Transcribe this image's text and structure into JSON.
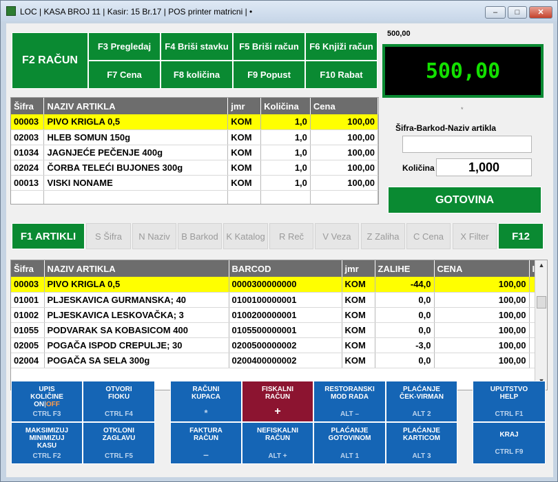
{
  "window": {
    "title": "LOC | KASA BROJ 11 | Kasir: 15 Br.17 | POS printer matricni |  •",
    "min_label": "–",
    "max_label": "□",
    "close_label": "✕"
  },
  "top_buttons": {
    "racun": "F2  RAČUN",
    "pregledaj": "F3  Pregledaj",
    "brisi_stavku": "F4  Briši stavku",
    "brisi_racun": "F5  Briši račun",
    "knjizi_racun": "F6  Knjiži račun",
    "cena": "F7   Cena",
    "kolicina": "F8   količina",
    "popust": "F9   Popust",
    "rabat": "F10   Rabat"
  },
  "total": {
    "small": "500,00",
    "display": "500,00",
    "dot": "*"
  },
  "search": {
    "label": "Šifra-Barkod-Naziv artikla",
    "value": "",
    "qty_label": "Količina",
    "qty_value": "1,000",
    "gotovina": "GOTOVINA"
  },
  "receipt": {
    "headers": [
      "Šifra",
      "NAZIV ARTIKLA",
      "jmr",
      "Količina",
      "Cena"
    ],
    "rows": [
      [
        "00003",
        "PIVO KRIGLA 0,5",
        "KOM",
        "1,0",
        "100,00"
      ],
      [
        "02003",
        "HLEB SOMUN 150g",
        "KOM",
        "1,0",
        "100,00"
      ],
      [
        "01034",
        "JAGNJEĆE PEČENJE 400g",
        "KOM",
        "1,0",
        "100,00"
      ],
      [
        "02024",
        "ČORBA TELEĆI BUJONES 300g",
        "KOM",
        "1,0",
        "100,00"
      ],
      [
        "00013",
        "VISKI NONAME",
        "KOM",
        "1,0",
        "100,00"
      ]
    ]
  },
  "tabs": {
    "artikli": "F1  ARTIKLI",
    "sifra": "S  Šifra",
    "naziv": "N  Naziv",
    "barkod": "B  Barkod",
    "katalog": "K  Katalog",
    "rec": "R  Reč",
    "veza": "V  Veza",
    "zaliha": "Z  Zaliha",
    "cena": "C  Cena",
    "filter": "X  Filter",
    "f12": "F12"
  },
  "articles": {
    "headers": [
      "Šifra",
      "NAZIV ARTIKLA",
      "BARCOD",
      "jmr",
      "ZALIHE",
      "CENA",
      "I"
    ],
    "rows": [
      [
        "00003",
        "PIVO KRIGLA 0,5",
        "0000300000000",
        "KOM",
        "-44,0",
        "100,00"
      ],
      [
        "01001",
        "PLJESKAVICA GURMANSKA; 40",
        "0100100000001",
        "KOM",
        "0,0",
        "100,00"
      ],
      [
        "01002",
        "PLJESKAVICA LESKOVAČKA; 3",
        "0100200000001",
        "KOM",
        "0,0",
        "100,00"
      ],
      [
        "01055",
        "PODVARAK SA KOBASICOM 400",
        "0105500000001",
        "KOM",
        "0,0",
        "100,00"
      ],
      [
        "02005",
        "POGAČA ISPOD CREPULJE; 30",
        "0200500000002",
        "KOM",
        "-3,0",
        "100,00"
      ],
      [
        "02004",
        "POGAČA SA SELA 300g",
        "0200400000002",
        "KOM",
        "0,0",
        "100,00"
      ]
    ]
  },
  "bottom": {
    "upis_1": "UPIS",
    "upis_2": "KOLIČINE",
    "upis_on": "ON",
    "upis_sep": "|",
    "upis_off": "OFF",
    "upis_sc": "CTRL  F3",
    "otvori": "OTVORI\nFIOKU",
    "otvori_sc": "CTRL   F4",
    "racuni": "RAČUNI\nKUPACA",
    "racuni_sc": "*",
    "fiskalni": "FISKALNI\nRAČUN",
    "fiskalni_sc": "+",
    "restoranski": "RESTORANSKI\nMOD RADA",
    "restoranski_sc": "ALT  –",
    "cek": "PLAĆANJE\nČEK-VIRMAN",
    "cek_sc": "ALT   2",
    "uputstvo": "UPUTSTVO\nHELP",
    "uputstvo_sc": "CTRL  F1",
    "maksimizuj": "MAKSIMIZUJ\nMINIMIZUJ\nKASU",
    "maksimizuj_sc": "CTRL  F2",
    "otkloni": "OTKLONI\nZAGLAVU",
    "otkloni_sc": "CTRL   F5",
    "faktura": "FAKTURA\nRAČUN",
    "faktura_sc": "–",
    "nefiskalni": "NEFISKALNI\nRAČUN",
    "nefiskalni_sc": "ALT  +",
    "gotovinom": "PLAĆANJE\nGOTOVINOM",
    "gotovinom_sc": "ALT   1",
    "karticom": "PLAĆANJE\nKARTICOM",
    "karticom_sc": "ALT   3",
    "kraj": "KRAJ",
    "kraj_sc": "CTRL   F9"
  },
  "colors": {
    "green": "#0a8a32",
    "blue": "#1565b5",
    "fiscal": "#8c1430",
    "selected_row": "#ffff00",
    "display_text": "#13e000"
  }
}
